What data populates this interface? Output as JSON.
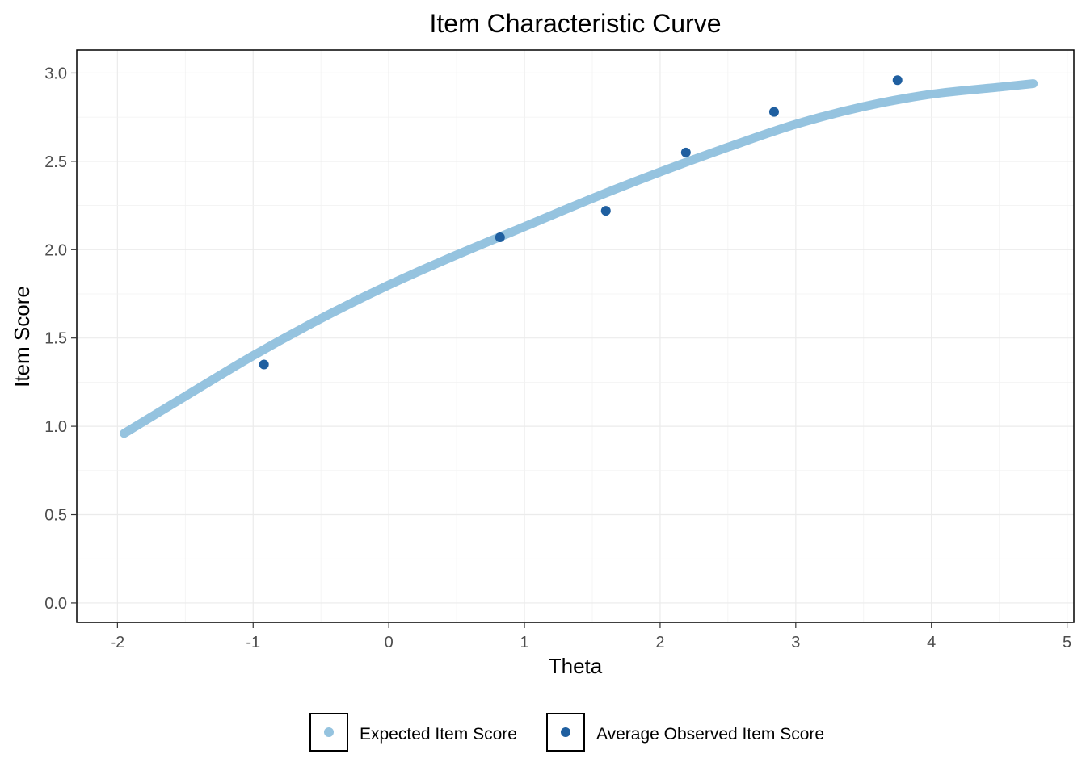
{
  "chart_data": {
    "type": "line",
    "title": "Item Characteristic Curve",
    "xlabel": "Theta",
    "ylabel": "Item Score",
    "xlim": [
      -2.3,
      5.05
    ],
    "ylim": [
      -0.11,
      3.13
    ],
    "x_ticks": [
      -2,
      -1,
      0,
      1,
      2,
      3,
      4,
      5
    ],
    "x_tick_labels": [
      "-2",
      "-1",
      "0",
      "1",
      "2",
      "3",
      "4",
      "5"
    ],
    "y_ticks": [
      0.0,
      0.5,
      1.0,
      1.5,
      2.0,
      2.5,
      3.0
    ],
    "y_tick_labels": [
      "0.0",
      "0.5",
      "1.0",
      "1.5",
      "2.0",
      "2.5",
      "3.0"
    ],
    "grid": true,
    "legend_position": "bottom",
    "series": [
      {
        "name": "Expected Item Score",
        "kind": "line",
        "color": "#95c3df",
        "x": [
          -1.95,
          -1.5,
          -1.0,
          -0.5,
          0.0,
          0.5,
          1.0,
          1.5,
          2.0,
          2.5,
          3.0,
          3.5,
          4.0,
          4.5,
          4.75
        ],
        "y": [
          0.96,
          1.17,
          1.4,
          1.61,
          1.8,
          1.97,
          2.13,
          2.29,
          2.44,
          2.58,
          2.71,
          2.81,
          2.88,
          2.92,
          2.94
        ]
      },
      {
        "name": "Average Observed Item Score",
        "kind": "scatter",
        "color": "#1f5fa0",
        "x": [
          -0.92,
          0.82,
          1.6,
          2.19,
          2.84,
          3.75
        ],
        "y": [
          1.35,
          2.07,
          2.22,
          2.55,
          2.78,
          2.96
        ]
      }
    ]
  }
}
